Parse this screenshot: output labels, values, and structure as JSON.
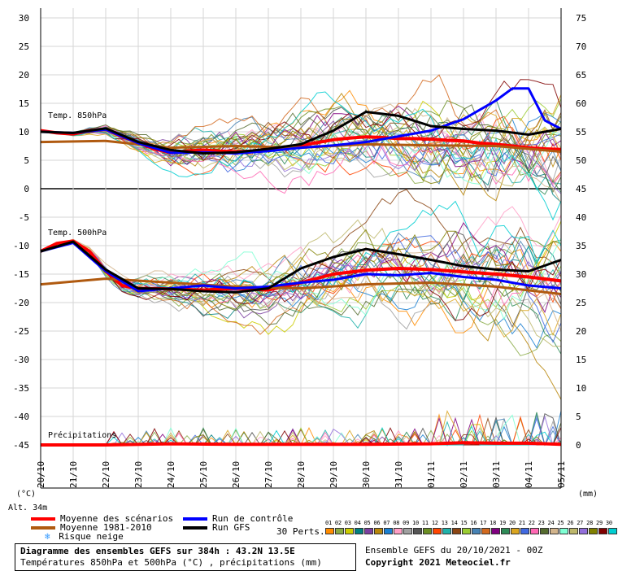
{
  "chart_data": {
    "type": "line",
    "title": "Diagramme des ensembles GEFS sur 384h : 43.2N 13.5E",
    "subtitle": "Températures 850hPa et 500hPa (°C) , précipitations (mm)",
    "left_axis_unit": "(°C)",
    "right_axis_unit": "(mm)",
    "left_ticks": [
      30,
      25,
      20,
      15,
      10,
      5,
      0,
      -5,
      -10,
      -15,
      -20,
      -25,
      -30,
      -35,
      -40,
      -45
    ],
    "right_ticks": [
      75,
      70,
      65,
      60,
      55,
      50,
      45,
      40,
      35,
      30,
      25,
      20,
      15,
      10,
      5,
      0
    ],
    "ylim": [
      -45,
      30
    ],
    "x_dates": [
      "20/10",
      "21/10",
      "22/10",
      "23/10",
      "24/10",
      "25/10",
      "26/10",
      "27/10",
      "28/10",
      "29/10",
      "30/10",
      "31/10",
      "01/11",
      "02/11",
      "03/11",
      "04/11",
      "05/11"
    ],
    "panel_labels": [
      "Temp. 850hPa",
      "Temp. 500hPa",
      "Précipitations"
    ],
    "altitude_label": "Alt. 34m",
    "series": [
      {
        "name": "Moyenne des scénarios",
        "color": "#ff0000",
        "panel": "850hPa",
        "x": [
          0,
          0.5,
          1,
          1.5,
          2,
          2.5,
          3,
          3.5,
          4,
          4.5,
          5,
          5.5,
          6,
          6.5,
          7,
          7.5,
          8,
          8.5,
          9,
          9.5,
          10,
          10.5,
          11,
          11.5,
          12,
          12.5,
          13,
          13.5,
          14,
          14.5,
          15,
          15.5,
          16
        ],
        "values": [
          10.2,
          9.8,
          9.6,
          10.2,
          10.4,
          9.2,
          8,
          7,
          6.3,
          6.6,
          6.8,
          6.6,
          6.5,
          6.6,
          7,
          7.2,
          7.6,
          8.1,
          8.6,
          8.9,
          9.1,
          9,
          8.8,
          8.8,
          8.7,
          8.5,
          8.4,
          8,
          7.8,
          7.5,
          7.2,
          7,
          6.9
        ]
      },
      {
        "name": "Moyenne 1981-2010",
        "color": "#b05a10",
        "panel": "850hPa",
        "x": [
          0,
          2,
          4,
          6,
          8,
          10,
          12,
          14,
          16
        ],
        "values": [
          8.2,
          8.4,
          7.2,
          7.5,
          7.2,
          7.8,
          7.6,
          7.5,
          6.5
        ]
      },
      {
        "name": "Run de contrôle",
        "color": "#0000ff",
        "panel": "850hPa",
        "x": [
          0,
          1,
          2,
          3,
          4,
          5,
          6,
          7,
          8,
          9,
          10,
          11,
          12,
          13,
          14,
          14.5,
          15,
          15.5,
          16
        ],
        "values": [
          10,
          9.8,
          10.4,
          8,
          6.3,
          6.4,
          6.2,
          6.6,
          7.2,
          7.6,
          8.2,
          9.2,
          10.2,
          12.2,
          15.5,
          17.6,
          17.6,
          12,
          10.5
        ]
      },
      {
        "name": "Run GFS",
        "color": "#000000",
        "panel": "850hPa",
        "x": [
          0,
          1,
          2,
          3,
          4,
          5,
          6,
          7,
          8,
          9,
          10,
          11,
          12,
          13,
          14,
          15,
          16
        ],
        "values": [
          10,
          9.8,
          10.6,
          8.2,
          6.8,
          6.2,
          6.4,
          7,
          7.8,
          10.2,
          13.5,
          12.8,
          11,
          10.5,
          10.2,
          9.5,
          10.5
        ]
      },
      {
        "name": "Moyenne des scénarios",
        "color": "#ff0000",
        "panel": "500hPa",
        "x": [
          0,
          0.5,
          1,
          1.5,
          2,
          2.5,
          3,
          4,
          5,
          6,
          7,
          8,
          9,
          10,
          11,
          12,
          13,
          14,
          15,
          16
        ],
        "values": [
          -11,
          -9.6,
          -9.2,
          -11,
          -14.5,
          -17,
          -17.5,
          -17.6,
          -17.8,
          -17.5,
          -17.8,
          -16.5,
          -15,
          -14.3,
          -14,
          -14.2,
          -14.6,
          -15,
          -15.5,
          -16.2
        ]
      },
      {
        "name": "Moyenne 1981-2010",
        "color": "#b05a10",
        "panel": "500hPa",
        "x": [
          0,
          2,
          4,
          6,
          8,
          10,
          12,
          14,
          16
        ],
        "values": [
          -16.8,
          -15.8,
          -16.5,
          -17.2,
          -17.5,
          -16.8,
          -16.5,
          -17.2,
          -18.5
        ]
      },
      {
        "name": "Run de contrôle",
        "color": "#0000ff",
        "panel": "500hPa",
        "x": [
          0,
          1,
          2,
          3,
          4,
          5,
          6,
          7,
          8,
          9,
          10,
          11,
          12,
          13,
          14,
          15,
          16
        ],
        "values": [
          -11,
          -9.5,
          -14.5,
          -18,
          -17.5,
          -17,
          -17.5,
          -17.2,
          -16.5,
          -16,
          -15,
          -15.2,
          -14.8,
          -15.5,
          -16,
          -17,
          -17.5
        ]
      },
      {
        "name": "Run GFS",
        "color": "#000000",
        "panel": "500hPa",
        "x": [
          0,
          1,
          2,
          3,
          4,
          5,
          6,
          7,
          8,
          9,
          10,
          11,
          12,
          13,
          14,
          15,
          16
        ],
        "values": [
          -11,
          -9.3,
          -14.2,
          -17.5,
          -17.6,
          -18,
          -18.2,
          -17.5,
          -14,
          -12,
          -10.6,
          -11.5,
          -12.5,
          -13.6,
          -14.2,
          -14.5,
          -12.5
        ]
      },
      {
        "name": "Précipitations",
        "color": "#ff0000",
        "panel": "precip",
        "x": [
          0,
          2,
          4,
          6,
          8,
          10,
          12,
          13,
          14,
          15,
          16
        ],
        "values": [
          0,
          0,
          0.2,
          0.1,
          0.1,
          0.1,
          0.2,
          0.4,
          0.3,
          0.3,
          0.1
        ]
      }
    ]
  },
  "legend": [
    {
      "label": "Moyenne des scénarios",
      "color": "#ff0000"
    },
    {
      "label": "Moyenne 1981-2010",
      "color": "#b05a10"
    },
    {
      "label": "Run de contrôle",
      "color": "#0000ff"
    },
    {
      "label": "Run GFS",
      "color": "#000000"
    }
  ],
  "snow_label": "Risque neige",
  "perts_label": "30 Perts.",
  "pert_numbers": "01 02 03 04 05 06 07 08 09 10 11 12 13 14 15 16 17 18 19 20 21 22 23 24 25 26 27 28 29 30",
  "pert_colors": [
    "#ff8c00",
    "#88aa44",
    "#cccc00",
    "#008080",
    "#7b3fa0",
    "#b8860b",
    "#1a7fd1",
    "#ff9ec5",
    "#a0a0a0",
    "#555555",
    "#6b8e23",
    "#ff4500",
    "#20b2aa",
    "#8b4513",
    "#9acd32",
    "#4682b4",
    "#d2691e",
    "#800080",
    "#2e8b57",
    "#daa520",
    "#4169e1",
    "#ff69b4",
    "#556b2f",
    "#d2b48c",
    "#7fffd4",
    "#bdb76b",
    "#9370db",
    "#808000",
    "#800000",
    "#00ced1"
  ],
  "footer": {
    "title": "Diagramme des ensembles GEFS sur 384h : 43.2N 13.5E",
    "subtitle": "Températures 850hPa et 500hPa (°C) , précipitations (mm)",
    "run_info": "Ensemble GEFS du 20/10/2021 - 00Z",
    "copyright": "Copyright 2021 Meteociel.fr"
  }
}
